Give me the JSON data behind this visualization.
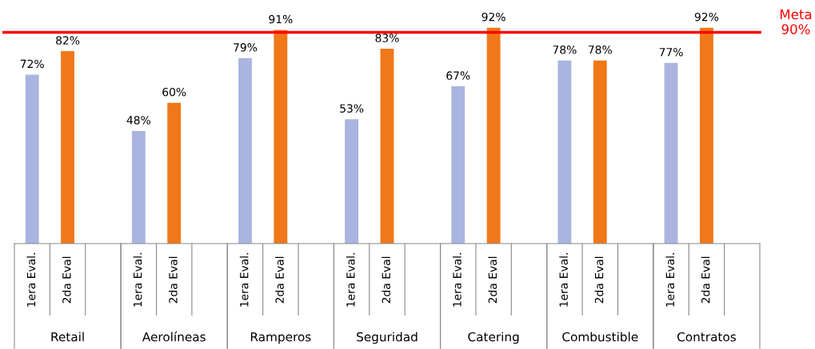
{
  "chart_data": {
    "type": "bar",
    "categories": [
      "Retail",
      "Aerolíneas",
      "Ramperos",
      "Seguridad",
      "Catering",
      "Combustible",
      "Contratos"
    ],
    "series": [
      {
        "name": "1era Eval.",
        "color": "#aab4e0",
        "values": [
          72,
          48,
          79,
          53,
          67,
          78,
          77
        ],
        "value_labels": [
          "72%",
          "48%",
          "79%",
          "53%",
          "67%",
          "78%",
          "77%"
        ]
      },
      {
        "name": "2da Eval",
        "color": "#f07818",
        "values": [
          82,
          60,
          91,
          83,
          92,
          78,
          92
        ],
        "value_labels": [
          "82%",
          "60%",
          "91%",
          "83%",
          "92%",
          "78%",
          "92%"
        ]
      }
    ],
    "ref_lines": [
      {
        "axis": "y",
        "value": 90,
        "label": "Meta\n90%",
        "color": "#ff0000"
      }
    ],
    "legend": false,
    "tick_labels": "x"
  }
}
